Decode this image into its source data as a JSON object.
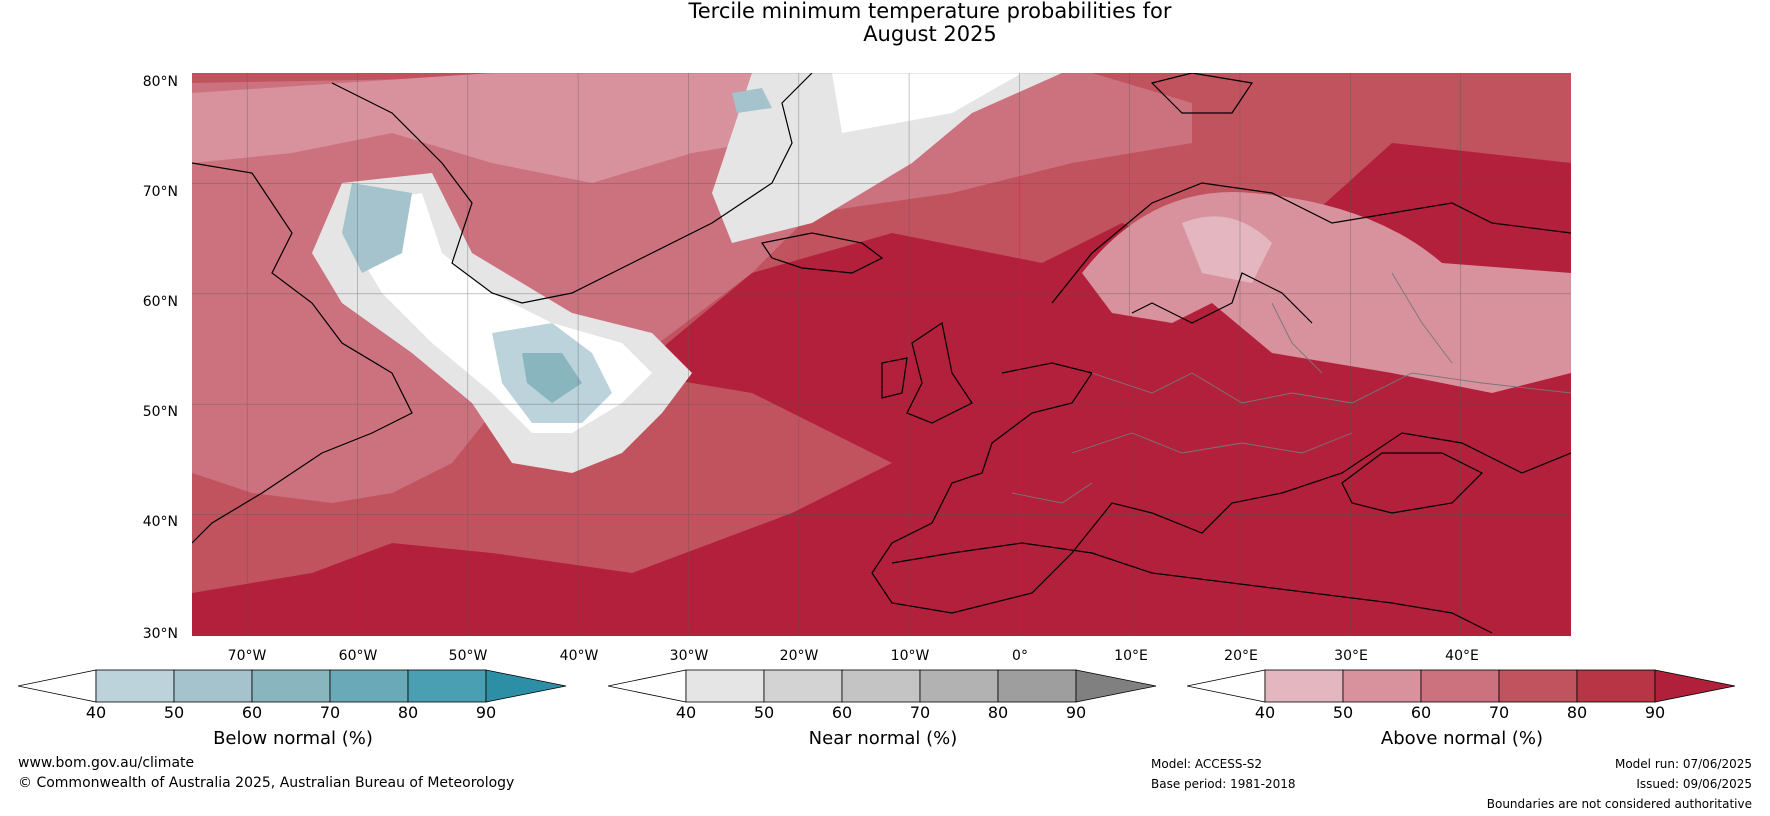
{
  "title": {
    "line1": "Tercile minimum temperature probabilities for",
    "line2": "August 2025"
  },
  "map": {
    "lat_labels": [
      "80°N",
      "70°N",
      "60°N",
      "50°N",
      "40°N",
      "30°N"
    ],
    "lon_labels": [
      "70°W",
      "60°W",
      "50°W",
      "40°W",
      "30°W",
      "20°W",
      "10°W",
      "0°",
      "10°E",
      "20°E",
      "30°E",
      "40°E"
    ],
    "lat_range": [
      30,
      81
    ],
    "lon_range": [
      -75,
      50
    ],
    "grid": true
  },
  "colorbars": [
    {
      "label": "Below normal (%)",
      "ticks": [
        "40",
        "50",
        "60",
        "70",
        "80",
        "90"
      ],
      "colors": [
        "#ffffff",
        "#bcd3db",
        "#a4c3cc",
        "#89b5bf",
        "#6aa9b7",
        "#4a9fb2",
        "#2c8fa6"
      ]
    },
    {
      "label": "Near normal (%)",
      "ticks": [
        "40",
        "50",
        "60",
        "70",
        "80",
        "90"
      ],
      "colors": [
        "#ffffff",
        "#e5e5e5",
        "#d3d3d3",
        "#c4c4c4",
        "#b2b2b2",
        "#9e9e9e",
        "#808080"
      ]
    },
    {
      "label": "Above normal (%)",
      "ticks": [
        "40",
        "50",
        "60",
        "70",
        "80",
        "90"
      ],
      "colors": [
        "#ffffff",
        "#e4b7c0",
        "#d8929e",
        "#cc727f",
        "#c1535f",
        "#b73545",
        "#b0203b"
      ]
    }
  ],
  "footer": {
    "website": "www.bom.gov.au/climate",
    "copyright": "© Commonwealth of Australia 2025, Australian Bureau of Meteorology",
    "model": "Model: ACCESS-S2",
    "base_period": "Base period: 1981-2018",
    "model_run": "Model run: 07/06/2025",
    "issued": "Issued: 09/06/2025",
    "disclaimer": "Boundaries are not considered authoritative"
  }
}
